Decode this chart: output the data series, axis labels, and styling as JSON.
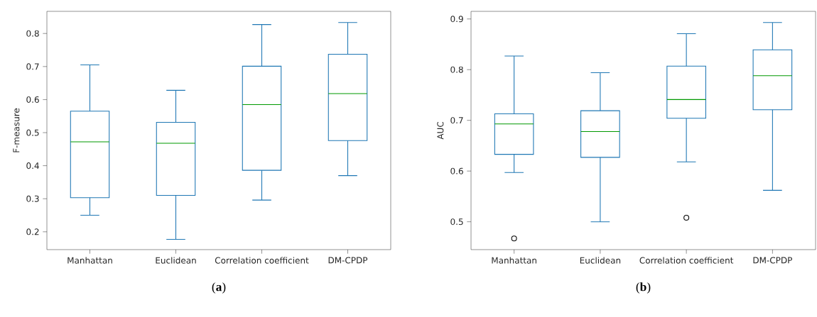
{
  "chart_data": [
    {
      "type": "box",
      "categories": [
        "Manhattan",
        "Euclidean",
        "Correlation coefficient",
        "DM-CPDP"
      ],
      "ylabel": "F-measure",
      "ylim": [
        0.146,
        0.867
      ],
      "yticks": [
        0.2,
        0.3,
        0.4,
        0.5,
        0.6,
        0.7,
        0.8
      ],
      "grid": false,
      "annotations": [
        "(**a**)"
      ],
      "series": [
        {
          "color": "#1f77b4",
          "boxes": [
            {
              "low": 0.25,
              "q1": 0.303,
              "median": 0.472,
              "q3": 0.565,
              "high": 0.705
            },
            {
              "low": 0.177,
              "q1": 0.31,
              "median": 0.468,
              "q3": 0.531,
              "high": 0.628
            },
            {
              "low": 0.296,
              "q1": 0.386,
              "median": 0.585,
              "q3": 0.701,
              "high": 0.827
            },
            {
              "low": 0.37,
              "q1": 0.476,
              "median": 0.618,
              "q3": 0.737,
              "high": 0.833
            }
          ]
        }
      ]
    },
    {
      "type": "box",
      "categories": [
        "Manhattan",
        "Euclidean",
        "Correlation coefficient",
        "DM-CPDP"
      ],
      "ylabel": "AUC",
      "ylim": [
        0.445,
        0.915
      ],
      "yticks": [
        0.5,
        0.6,
        0.7,
        0.8,
        0.9
      ],
      "grid": false,
      "annotations": [
        "(**b**)"
      ],
      "series": [
        {
          "color": "#1f77b4",
          "boxes": [
            {
              "low": 0.597,
              "q1": 0.633,
              "median": 0.693,
              "q3": 0.713,
              "high": 0.827,
              "outliers": [
                0.467
              ]
            },
            {
              "low": 0.5,
              "q1": 0.627,
              "median": 0.678,
              "q3": 0.719,
              "high": 0.794
            },
            {
              "low": 0.618,
              "q1": 0.704,
              "median": 0.741,
              "q3": 0.807,
              "high": 0.871,
              "outliers": [
                0.508
              ]
            },
            {
              "low": 0.562,
              "q1": 0.721,
              "median": 0.788,
              "q3": 0.839,
              "high": 0.893
            }
          ]
        }
      ]
    }
  ]
}
